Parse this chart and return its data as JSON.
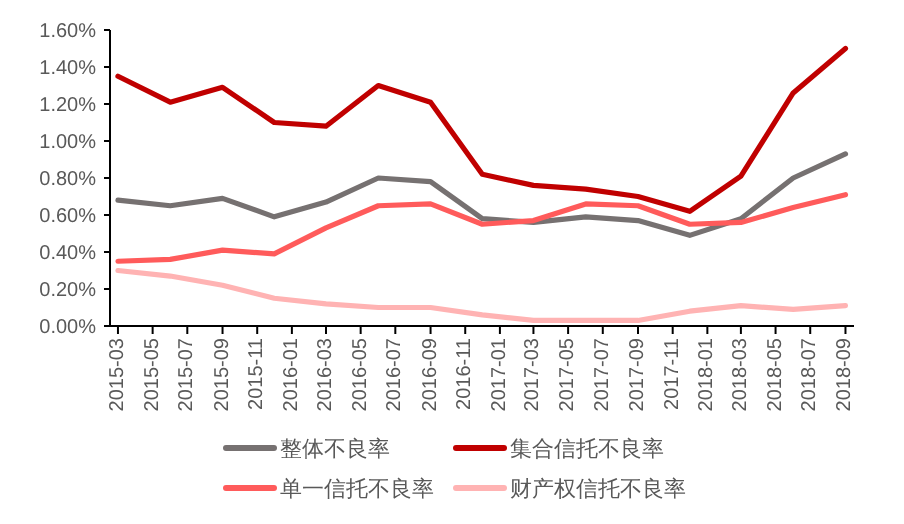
{
  "chart_data": {
    "type": "line",
    "x": [
      "2015-03",
      "2015-06",
      "2015-09",
      "2015-12",
      "2016-03",
      "2016-06",
      "2016-09",
      "2016-12",
      "2017-03",
      "2017-06",
      "2017-09",
      "2017-12",
      "2018-03",
      "2018-06",
      "2018-09"
    ],
    "series": [
      {
        "name": "整体不良率",
        "color": "#767171",
        "values": [
          0.68,
          0.65,
          0.69,
          0.59,
          0.67,
          0.8,
          0.78,
          0.58,
          0.56,
          0.59,
          0.57,
          0.49,
          0.58,
          0.8,
          0.93
        ]
      },
      {
        "name": "集合信托不良率",
        "color": "#c00000",
        "values": [
          1.35,
          1.21,
          1.29,
          1.1,
          1.08,
          1.3,
          1.21,
          0.82,
          0.76,
          0.74,
          0.7,
          0.62,
          0.81,
          1.26,
          1.5
        ]
      },
      {
        "name": "单一信托不良率",
        "color": "#ff5b5b",
        "values": [
          0.35,
          0.36,
          0.41,
          0.39,
          0.53,
          0.65,
          0.66,
          0.55,
          0.57,
          0.66,
          0.65,
          0.55,
          0.56,
          0.64,
          0.71
        ]
      },
      {
        "name": "财产权信托不良率",
        "color": "#ffb3b3",
        "values": [
          0.3,
          0.27,
          0.22,
          0.15,
          0.12,
          0.1,
          0.1,
          0.06,
          0.03,
          0.03,
          0.03,
          0.08,
          0.11,
          0.09,
          0.11
        ]
      }
    ],
    "xlim": [
      "2015-02-15",
      "2018-09-16"
    ],
    "xticks": [
      "2015-03",
      "2015-05",
      "2015-07",
      "2015-09",
      "2015-11",
      "2016-01",
      "2016-03",
      "2016-05",
      "2016-07",
      "2016-09",
      "2016-11",
      "2017-01",
      "2017-03",
      "2017-05",
      "2017-07",
      "2017-09",
      "2017-11",
      "2018-01",
      "2018-03",
      "2018-05",
      "2018-07",
      "2018-09"
    ],
    "ylim": [
      0,
      1.6
    ],
    "yticks": [
      {
        "value": 0,
        "label": "0.00%"
      },
      {
        "value": 0.2,
        "label": "0.20%"
      },
      {
        "value": 0.4,
        "label": "0.40%"
      },
      {
        "value": 0.6,
        "label": "0.60%"
      },
      {
        "value": 0.8,
        "label": "0.80%"
      },
      {
        "value": 1.0,
        "label": "1.00%"
      },
      {
        "value": 1.2,
        "label": "1.20%"
      },
      {
        "value": 1.4,
        "label": "1.40%"
      },
      {
        "value": 1.6,
        "label": "1.60%"
      }
    ],
    "legend": "bottom",
    "marker": "none",
    "line_style": "solid",
    "grid": false
  }
}
